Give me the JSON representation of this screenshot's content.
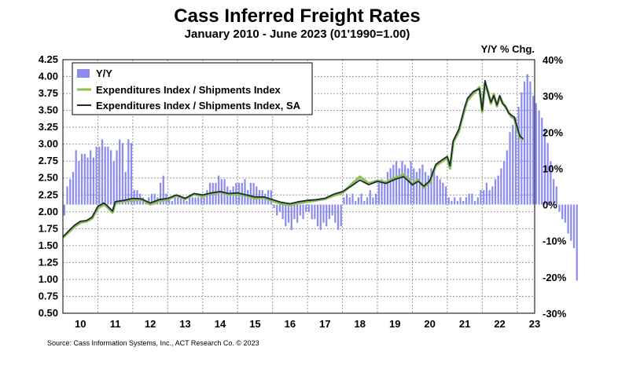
{
  "chart_data": {
    "type": "line+bar",
    "title": "Cass Inferred Freight Rates",
    "subtitle": "January 2010 - June 2023 (01'1990=1.00)",
    "right_axis_label": "Y/Y % Chg.",
    "source": "Source: Cass Information Systems, Inc., ACT Research Co. © 2023",
    "left_axis": {
      "min": 0.5,
      "max": 4.25,
      "ticks": [
        "4.25",
        "4.00",
        "3.75",
        "3.50",
        "3.25",
        "3.00",
        "2.75",
        "2.50",
        "2.25",
        "2.00",
        "1.75",
        "1.50",
        "1.25",
        "1.00",
        "0.75",
        "0.50"
      ]
    },
    "right_axis": {
      "min": -30,
      "max": 40,
      "ticks": [
        "40%",
        "30%",
        "20%",
        "10%",
        "0%",
        "-10%",
        "-20%",
        "-30%"
      ]
    },
    "x_axis": {
      "start_year": 2010,
      "end": 2023.5,
      "labels": [
        "10",
        "11",
        "12",
        "13",
        "14",
        "15",
        "16",
        "17",
        "18",
        "19",
        "20",
        "21",
        "22",
        "23"
      ]
    },
    "legend": {
      "position": "top-left",
      "entries": [
        {
          "label": "Y/Y",
          "color": "#8c8cf0",
          "kind": "bar"
        },
        {
          "label": "Expenditures Index / Shipments Index",
          "color": "#8dc051",
          "kind": "line"
        },
        {
          "label": "Expenditures Index / Shipments Index, SA",
          "color": "#1b2b38",
          "kind": "line"
        }
      ]
    },
    "colors": {
      "bar": "#8c8cf0",
      "nsa": "#8dc051",
      "sa": "#1b2b38",
      "grid": "#999999"
    },
    "series_sa": [
      [
        2010.0,
        1.63
      ],
      [
        2010.17,
        1.72
      ],
      [
        2010.33,
        1.8
      ],
      [
        2010.5,
        1.86
      ],
      [
        2010.67,
        1.87
      ],
      [
        2010.83,
        1.92
      ],
      [
        2011.0,
        2.08
      ],
      [
        2011.17,
        2.13
      ],
      [
        2011.25,
        2.1
      ],
      [
        2011.42,
        2.01
      ],
      [
        2011.5,
        2.15
      ],
      [
        2011.75,
        2.17
      ],
      [
        2012.0,
        2.2
      ],
      [
        2012.25,
        2.19
      ],
      [
        2012.5,
        2.13
      ],
      [
        2012.75,
        2.18
      ],
      [
        2013.0,
        2.2
      ],
      [
        2013.25,
        2.25
      ],
      [
        2013.5,
        2.2
      ],
      [
        2013.75,
        2.27
      ],
      [
        2014.0,
        2.25
      ],
      [
        2014.25,
        2.28
      ],
      [
        2014.5,
        2.3
      ],
      [
        2014.75,
        2.27
      ],
      [
        2015.0,
        2.28
      ],
      [
        2015.25,
        2.25
      ],
      [
        2015.5,
        2.22
      ],
      [
        2015.75,
        2.22
      ],
      [
        2016.0,
        2.18
      ],
      [
        2016.25,
        2.14
      ],
      [
        2016.5,
        2.12
      ],
      [
        2016.75,
        2.15
      ],
      [
        2017.0,
        2.17
      ],
      [
        2017.25,
        2.18
      ],
      [
        2017.5,
        2.2
      ],
      [
        2017.75,
        2.26
      ],
      [
        2018.0,
        2.3
      ],
      [
        2018.25,
        2.38
      ],
      [
        2018.5,
        2.47
      ],
      [
        2018.75,
        2.4
      ],
      [
        2019.0,
        2.45
      ],
      [
        2019.25,
        2.42
      ],
      [
        2019.5,
        2.48
      ],
      [
        2019.75,
        2.52
      ],
      [
        2020.0,
        2.4
      ],
      [
        2020.17,
        2.45
      ],
      [
        2020.33,
        2.38
      ],
      [
        2020.5,
        2.46
      ],
      [
        2020.67,
        2.7
      ],
      [
        2020.83,
        2.76
      ],
      [
        2021.0,
        2.82
      ],
      [
        2021.08,
        2.68
      ],
      [
        2021.17,
        3.05
      ],
      [
        2021.33,
        3.22
      ],
      [
        2021.5,
        3.55
      ],
      [
        2021.58,
        3.68
      ],
      [
        2021.75,
        3.78
      ],
      [
        2021.92,
        3.82
      ],
      [
        2022.0,
        3.5
      ],
      [
        2022.08,
        3.94
      ],
      [
        2022.17,
        3.75
      ],
      [
        2022.25,
        3.62
      ],
      [
        2022.33,
        3.72
      ],
      [
        2022.42,
        3.58
      ],
      [
        2022.5,
        3.72
      ],
      [
        2022.58,
        3.6
      ],
      [
        2022.67,
        3.56
      ],
      [
        2022.75,
        3.46
      ],
      [
        2022.83,
        3.43
      ],
      [
        2022.92,
        3.4
      ],
      [
        2023.0,
        3.25
      ],
      [
        2023.08,
        3.12
      ],
      [
        2023.17,
        3.08
      ]
    ],
    "series_nsa": [
      [
        2010.0,
        1.62
      ],
      [
        2010.17,
        1.7
      ],
      [
        2010.33,
        1.78
      ],
      [
        2010.5,
        1.84
      ],
      [
        2010.67,
        1.86
      ],
      [
        2010.83,
        1.9
      ],
      [
        2011.0,
        2.05
      ],
      [
        2011.17,
        2.11
      ],
      [
        2011.25,
        2.08
      ],
      [
        2011.42,
        1.99
      ],
      [
        2011.5,
        2.13
      ],
      [
        2011.75,
        2.16
      ],
      [
        2012.0,
        2.17
      ],
      [
        2012.25,
        2.18
      ],
      [
        2012.5,
        2.11
      ],
      [
        2012.75,
        2.16
      ],
      [
        2013.0,
        2.18
      ],
      [
        2013.25,
        2.24
      ],
      [
        2013.5,
        2.19
      ],
      [
        2013.75,
        2.26
      ],
      [
        2014.0,
        2.23
      ],
      [
        2014.25,
        2.27
      ],
      [
        2014.5,
        2.29
      ],
      [
        2014.75,
        2.26
      ],
      [
        2015.0,
        2.26
      ],
      [
        2015.25,
        2.24
      ],
      [
        2015.5,
        2.2
      ],
      [
        2015.75,
        2.21
      ],
      [
        2016.0,
        2.16
      ],
      [
        2016.25,
        2.12
      ],
      [
        2016.5,
        2.1
      ],
      [
        2016.75,
        2.13
      ],
      [
        2017.0,
        2.15
      ],
      [
        2017.25,
        2.17
      ],
      [
        2017.5,
        2.19
      ],
      [
        2017.75,
        2.24
      ],
      [
        2018.0,
        2.28
      ],
      [
        2018.25,
        2.4
      ],
      [
        2018.5,
        2.52
      ],
      [
        2018.75,
        2.42
      ],
      [
        2019.0,
        2.46
      ],
      [
        2019.25,
        2.44
      ],
      [
        2019.5,
        2.5
      ],
      [
        2019.75,
        2.55
      ],
      [
        2020.0,
        2.42
      ],
      [
        2020.17,
        2.47
      ],
      [
        2020.33,
        2.36
      ],
      [
        2020.5,
        2.44
      ],
      [
        2020.67,
        2.68
      ],
      [
        2020.83,
        2.74
      ],
      [
        2021.0,
        2.8
      ],
      [
        2021.08,
        2.64
      ],
      [
        2021.17,
        3.02
      ],
      [
        2021.33,
        3.19
      ],
      [
        2021.5,
        3.52
      ],
      [
        2021.58,
        3.65
      ],
      [
        2021.75,
        3.75
      ],
      [
        2021.92,
        3.84
      ],
      [
        2022.0,
        3.48
      ],
      [
        2022.08,
        3.9
      ],
      [
        2022.17,
        3.77
      ],
      [
        2022.25,
        3.6
      ],
      [
        2022.33,
        3.74
      ],
      [
        2022.42,
        3.56
      ],
      [
        2022.5,
        3.7
      ],
      [
        2022.58,
        3.62
      ],
      [
        2022.67,
        3.54
      ],
      [
        2022.75,
        3.48
      ],
      [
        2022.83,
        3.41
      ],
      [
        2022.92,
        3.38
      ],
      [
        2023.0,
        3.22
      ],
      [
        2023.08,
        3.1
      ],
      [
        2023.17,
        3.06
      ]
    ],
    "yoy_bars": [
      -3,
      5,
      7,
      9,
      15,
      12,
      14,
      14,
      13,
      15,
      13,
      16,
      16,
      18,
      16,
      16,
      15,
      12,
      15,
      18,
      17,
      9,
      18,
      17,
      4,
      4,
      3,
      2,
      1,
      2,
      3,
      3,
      2,
      6,
      8,
      3,
      2,
      1,
      2,
      2,
      2,
      2,
      1,
      2,
      2,
      2,
      2,
      2,
      2,
      4,
      6,
      6,
      6,
      8,
      7,
      7,
      5,
      4,
      5,
      6,
      6,
      6,
      7,
      4,
      6,
      6,
      5,
      4,
      4,
      3,
      4,
      4,
      -1,
      -3,
      -2,
      -4,
      -6,
      -5,
      -7,
      -4,
      -5,
      -3,
      -4,
      -2,
      -2,
      -4,
      -4,
      -6,
      -7,
      -5,
      -6,
      -4,
      -3,
      -5,
      -7,
      -6,
      2,
      3,
      2,
      3,
      1,
      2,
      3,
      1,
      2,
      4,
      2,
      3,
      6,
      7,
      6,
      9,
      10,
      11,
      12,
      10,
      12,
      11,
      10,
      12,
      10,
      9,
      10,
      11,
      9,
      8,
      10,
      9,
      8,
      7,
      6,
      5,
      2,
      1,
      2,
      1,
      2,
      1,
      2,
      3,
      3,
      1,
      2,
      4,
      4,
      6,
      4,
      5,
      7,
      8,
      10,
      12,
      15,
      20,
      22,
      24,
      27,
      31,
      34,
      36,
      34,
      30,
      28,
      26,
      24,
      21,
      17,
      12,
      7,
      5,
      -2,
      -4,
      -5,
      -8,
      -10,
      -12,
      -21
    ]
  }
}
